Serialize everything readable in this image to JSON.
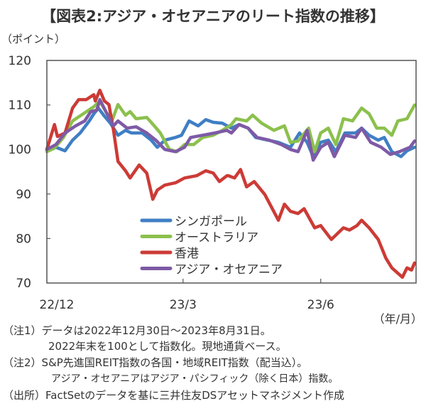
{
  "chart_data": {
    "type": "line",
    "title": "【図表2:アジア・オセアニアのリート指数の推移】",
    "ylabel": "（ポイント）",
    "xlabel": "（年/月）",
    "ylim": [
      70,
      120
    ],
    "yticks": [
      70,
      80,
      90,
      100,
      110,
      120
    ],
    "x_unit": "days since 2022-12-30",
    "xlim": [
      0,
      244
    ],
    "xticks": [
      {
        "day": 0,
        "label": "22/12"
      },
      {
        "day": 90,
        "label": "23/3"
      },
      {
        "day": 181,
        "label": "23/6"
      }
    ],
    "legend_placement": "bottom-center-inside",
    "series": [
      {
        "name": "シンガポール",
        "color": "#3f7fc4",
        "points": [
          [
            0,
            100
          ],
          [
            6,
            100.5
          ],
          [
            12,
            99.7
          ],
          [
            17,
            102.1
          ],
          [
            22,
            103.7
          ],
          [
            28,
            106.4
          ],
          [
            31,
            108
          ],
          [
            34,
            109.3
          ],
          [
            38,
            107.5
          ],
          [
            42,
            105.9
          ],
          [
            47,
            103.2
          ],
          [
            52,
            104.3
          ],
          [
            56,
            103.7
          ],
          [
            63,
            103.7
          ],
          [
            69,
            102.1
          ],
          [
            73,
            100.5
          ],
          [
            78,
            102.1
          ],
          [
            85,
            102.7
          ],
          [
            89,
            103.2
          ],
          [
            94,
            106.4
          ],
          [
            100,
            105.3
          ],
          [
            105,
            106.7
          ],
          [
            110,
            106.1
          ],
          [
            116,
            105.9
          ],
          [
            122,
            104.8
          ],
          [
            127,
            105.6
          ],
          [
            133,
            104.8
          ],
          [
            138,
            102.7
          ],
          [
            146,
            102.1
          ],
          [
            153,
            101.6
          ],
          [
            161,
            100.5
          ],
          [
            167,
            103.7
          ],
          [
            172,
            101.6
          ],
          [
            176,
            98.4
          ],
          [
            181,
            101.6
          ],
          [
            186,
            102.1
          ],
          [
            191,
            99.5
          ],
          [
            197,
            103.7
          ],
          [
            204,
            103.7
          ],
          [
            208,
            104.8
          ],
          [
            213,
            103.2
          ],
          [
            219,
            102.1
          ],
          [
            223,
            102.7
          ],
          [
            228,
            99.5
          ],
          [
            234,
            98.4
          ],
          [
            238,
            99.7
          ],
          [
            243,
            100.5
          ]
        ]
      },
      {
        "name": "オーストラリア",
        "color": "#8cc04e",
        "points": [
          [
            0,
            99.5
          ],
          [
            5,
            100.3
          ],
          [
            11,
            102.7
          ],
          [
            17,
            106.4
          ],
          [
            24,
            108
          ],
          [
            31,
            109.6
          ],
          [
            35,
            110.9
          ],
          [
            39,
            108.5
          ],
          [
            43,
            106.4
          ],
          [
            47,
            110.1
          ],
          [
            52,
            107.7
          ],
          [
            55,
            108.5
          ],
          [
            59,
            106.9
          ],
          [
            66,
            107.2
          ],
          [
            71,
            105.3
          ],
          [
            75,
            103.7
          ],
          [
            81,
            100
          ],
          [
            86,
            99.5
          ],
          [
            91,
            101.1
          ],
          [
            97,
            101.1
          ],
          [
            103,
            102.7
          ],
          [
            110,
            103.2
          ],
          [
            116,
            104.3
          ],
          [
            122,
            105.6
          ],
          [
            125,
            106.9
          ],
          [
            132,
            106.4
          ],
          [
            136,
            107.7
          ],
          [
            142,
            105.9
          ],
          [
            150,
            104.3
          ],
          [
            157,
            105.3
          ],
          [
            161,
            101.6
          ],
          [
            166,
            101.9
          ],
          [
            173,
            104.8
          ],
          [
            177,
            99.5
          ],
          [
            181,
            103.7
          ],
          [
            186,
            104.8
          ],
          [
            191,
            101.1
          ],
          [
            196,
            106.9
          ],
          [
            202,
            106.4
          ],
          [
            208,
            109.3
          ],
          [
            213,
            108
          ],
          [
            218,
            104.8
          ],
          [
            223,
            104.8
          ],
          [
            228,
            103.2
          ],
          [
            232,
            106.4
          ],
          [
            238,
            106.9
          ],
          [
            243,
            110
          ]
        ]
      },
      {
        "name": "香港",
        "color": "#cc3b36",
        "points": [
          [
            0,
            100
          ],
          [
            5,
            105.6
          ],
          [
            7,
            102.9
          ],
          [
            12,
            103.7
          ],
          [
            17,
            109.3
          ],
          [
            21,
            111.2
          ],
          [
            26,
            111.2
          ],
          [
            31,
            112.3
          ],
          [
            32,
            110.9
          ],
          [
            35,
            113.3
          ],
          [
            38,
            110.9
          ],
          [
            41,
            110.1
          ],
          [
            44,
            104.4
          ],
          [
            47,
            97.3
          ],
          [
            52,
            95.2
          ],
          [
            55,
            93.6
          ],
          [
            61,
            96.5
          ],
          [
            66,
            94.7
          ],
          [
            70,
            88.8
          ],
          [
            73,
            90.9
          ],
          [
            78,
            92
          ],
          [
            85,
            92.5
          ],
          [
            91,
            93.6
          ],
          [
            99,
            94.1
          ],
          [
            105,
            95.2
          ],
          [
            110,
            94.7
          ],
          [
            114,
            92.8
          ],
          [
            120,
            94.1
          ],
          [
            119,
            94.1
          ],
          [
            124,
            93.6
          ],
          [
            128,
            95.5
          ],
          [
            132,
            91.6
          ],
          [
            137,
            92.8
          ],
          [
            144,
            89.9
          ],
          [
            153,
            84.1
          ],
          [
            157,
            87.7
          ],
          [
            161,
            86.1
          ],
          [
            166,
            85.6
          ],
          [
            170,
            86.7
          ],
          [
            177,
            82.4
          ],
          [
            181,
            82.9
          ],
          [
            188,
            79.8
          ],
          [
            196,
            82.4
          ],
          [
            200,
            81.9
          ],
          [
            205,
            82.9
          ],
          [
            208,
            84.1
          ],
          [
            213,
            82.4
          ],
          [
            219,
            79.8
          ],
          [
            224,
            75.6
          ],
          [
            228,
            73.4
          ],
          [
            235,
            71.3
          ],
          [
            238,
            73.4
          ],
          [
            241,
            72.9
          ],
          [
            243,
            74.5
          ]
        ]
      },
      {
        "name": "アジア・オセアニア",
        "color": "#7e5aa6",
        "points": [
          [
            0,
            100
          ],
          [
            6,
            101.1
          ],
          [
            12,
            103.7
          ],
          [
            19,
            105.3
          ],
          [
            25,
            106.4
          ],
          [
            29,
            108.5
          ],
          [
            33,
            108.8
          ],
          [
            35,
            111.2
          ],
          [
            39,
            108.5
          ],
          [
            44,
            105.3
          ],
          [
            47,
            106.4
          ],
          [
            53,
            104.8
          ],
          [
            59,
            105.1
          ],
          [
            66,
            103.7
          ],
          [
            72,
            102.1
          ],
          [
            78,
            100
          ],
          [
            85,
            99.5
          ],
          [
            91,
            100.5
          ],
          [
            95,
            102.7
          ],
          [
            103,
            103.2
          ],
          [
            111,
            103.7
          ],
          [
            119,
            104.3
          ],
          [
            122,
            103.7
          ],
          [
            127,
            105.6
          ],
          [
            133,
            104.8
          ],
          [
            139,
            102.7
          ],
          [
            147,
            102.1
          ],
          [
            155,
            101.1
          ],
          [
            161,
            100
          ],
          [
            166,
            99.5
          ],
          [
            172,
            104.3
          ],
          [
            176,
            97.6
          ],
          [
            181,
            100.5
          ],
          [
            186,
            101.6
          ],
          [
            190,
            98.4
          ],
          [
            197,
            103.2
          ],
          [
            204,
            102.7
          ],
          [
            208,
            104.8
          ],
          [
            214,
            101.6
          ],
          [
            221,
            100.5
          ],
          [
            227,
            98.9
          ],
          [
            233,
            99.5
          ],
          [
            240,
            100.5
          ],
          [
            243,
            101.9
          ]
        ]
      }
    ]
  },
  "notes": [
    "（注1）データは2022年12月30日～2023年8月31日。",
    "2022年末を100として指数化。現地通貨ベース。",
    "（注2）S&P先進国REIT指数の各国・地域REIT指数（配当込）。",
    "アジア・オセアニアはアジア・パシフィック（除く日本）指数。",
    "（出所）FactSetのデータを基に三井住友DSアセットマネジメント作成"
  ]
}
